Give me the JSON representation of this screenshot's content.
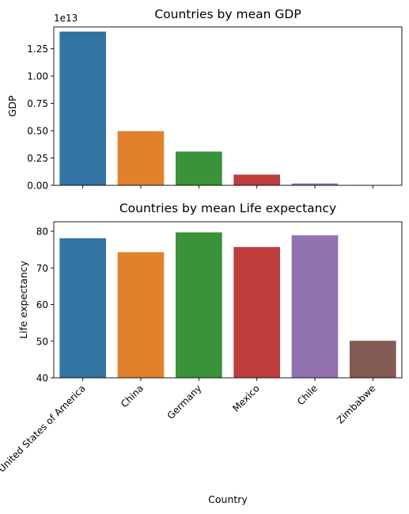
{
  "chart_data": [
    {
      "type": "bar",
      "title": "Countries by mean GDP",
      "xlabel": "",
      "ylabel": "GDP",
      "offset_label": "1e13",
      "categories": [
        "United States of America",
        "China",
        "Germany",
        "Mexico",
        "Chile",
        "Zimbabwe"
      ],
      "values": [
        14075000000000.0,
        4960000000000.0,
        3090000000000.0,
        980000000000.0,
        170000000000.0,
        9000000000.0
      ],
      "ylim": [
        0,
        14500000000000.0
      ],
      "yticks": [
        0,
        2500000000000.0,
        5000000000000.0,
        7500000000000.0,
        10000000000000.0,
        12500000000000.0
      ],
      "ytick_labels": [
        "0.00",
        "0.25",
        "0.50",
        "0.75",
        "1.00",
        "1.25"
      ],
      "show_xtick_labels": false,
      "grid": false,
      "colors": [
        "#3274a1",
        "#e1812c",
        "#3a923a",
        "#c03d3e",
        "#9372b2",
        "#845b53"
      ]
    },
    {
      "type": "bar",
      "title": "Countries by mean Life expectancy",
      "xlabel": "Country",
      "ylabel": "Life expectancy",
      "categories": [
        "United States of America",
        "China",
        "Germany",
        "Mexico",
        "Chile",
        "Zimbabwe"
      ],
      "values": [
        78.1,
        74.3,
        79.7,
        75.7,
        78.9,
        50.1
      ],
      "ylim": [
        40,
        82.6
      ],
      "yticks": [
        40,
        50,
        60,
        70,
        80
      ],
      "ytick_labels": [
        "40",
        "50",
        "60",
        "70",
        "80"
      ],
      "show_xtick_labels": true,
      "grid": false,
      "colors": [
        "#3274a1",
        "#e1812c",
        "#3a923a",
        "#c03d3e",
        "#9372b2",
        "#845b53"
      ]
    }
  ]
}
